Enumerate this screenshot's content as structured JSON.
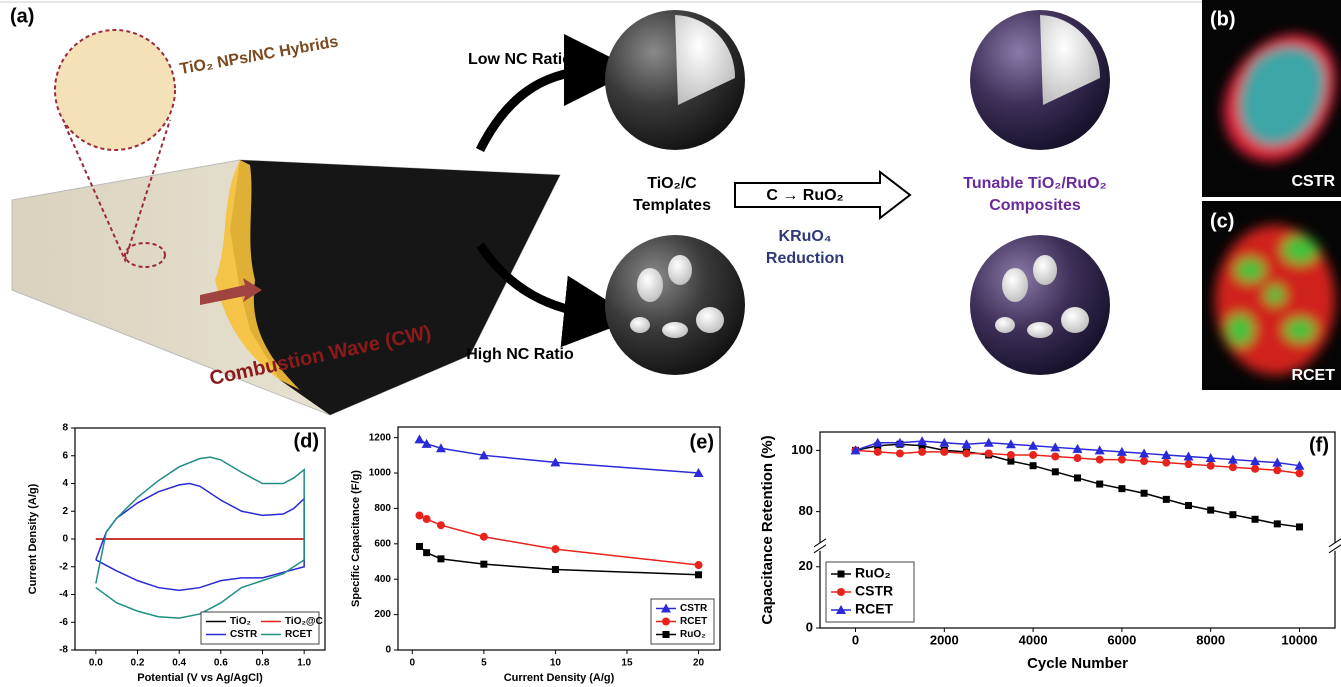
{
  "schematic": {
    "labels": [
      "(a)",
      "(b)",
      "(c)"
    ],
    "hybrid": "TiO₂ NPs/NC Hybrids",
    "wave": "Combustion Wave (CW)",
    "low": "Low NC Ratio",
    "high": "High NC Ratio",
    "templates": [
      "TiO₂/C",
      "Templates"
    ],
    "conversion": "C → RuO₂",
    "reduction": [
      "KRuO₄",
      "Reduction"
    ],
    "composites": [
      "Tunable TiO₂/RuO₂",
      "Composites"
    ],
    "image_b": "CSTR",
    "image_c": "RCET"
  },
  "chart_data": [
    {
      "type": "line",
      "panel_label": "(d)",
      "x_label": "Potential (V vs Ag/AgCl)",
      "y_label": "Current Density (A/g)",
      "xlim": [
        -0.1,
        1.1
      ],
      "xticks": [
        {
          "value": 0,
          "label": "0.0"
        },
        {
          "value": 0.2,
          "label": "0.2"
        },
        {
          "value": 0.4,
          "label": "0.4"
        },
        {
          "value": 0.6,
          "label": "0.6"
        },
        {
          "value": 0.8,
          "label": "0.8"
        },
        {
          "value": 1,
          "label": "1.0"
        }
      ],
      "ylim": [
        -8,
        8
      ],
      "yticks": [
        -8,
        -6,
        -4,
        -2,
        0,
        2,
        4,
        6,
        8
      ],
      "legend": "lower right",
      "legend_columns": 2,
      "series": [
        {
          "name": "TiO₂",
          "color": "#000000",
          "x": [
            0,
            1
          ],
          "values": [
            0,
            0
          ]
        },
        {
          "name": "TiO₂@C",
          "color": "#e8231b",
          "x": [
            0,
            1
          ],
          "values": [
            0,
            0
          ]
        },
        {
          "name": "CSTR",
          "color": "#2a2ad8",
          "x": [
            0,
            0.05,
            0.1,
            0.2,
            0.3,
            0.4,
            0.45,
            0.5,
            0.6,
            0.7,
            0.8,
            0.9,
            0.95,
            1,
            1,
            0.9,
            0.8,
            0.7,
            0.6,
            0.5,
            0.4,
            0.3,
            0.2,
            0.1,
            0
          ],
          "values": [
            -1.5,
            0.5,
            1.5,
            2.6,
            3.4,
            3.9,
            4,
            3.8,
            2.8,
            2,
            1.7,
            1.8,
            2.2,
            2.9,
            -2,
            -2.4,
            -2.8,
            -2.8,
            -3,
            -3.5,
            -3.7,
            -3.5,
            -3,
            -2.3,
            -1.5
          ]
        },
        {
          "name": "RCET",
          "color": "#1f8f84",
          "x": [
            0,
            0.05,
            0.1,
            0.2,
            0.3,
            0.4,
            0.5,
            0.55,
            0.6,
            0.7,
            0.8,
            0.9,
            0.95,
            1,
            1,
            0.95,
            0.9,
            0.8,
            0.7,
            0.6,
            0.5,
            0.4,
            0.3,
            0.2,
            0.1,
            0
          ],
          "values": [
            -3.2,
            0.5,
            1.5,
            3,
            4.2,
            5.2,
            5.8,
            5.9,
            5.7,
            4.8,
            4,
            4,
            4.4,
            5,
            -1.5,
            -2,
            -2.5,
            -3,
            -3.5,
            -4.6,
            -5.4,
            -5.7,
            -5.6,
            -5.2,
            -4.6,
            -3.5
          ]
        }
      ]
    },
    {
      "type": "line",
      "panel_label": "(e)",
      "x_label": "Current Density (A/g)",
      "y_label": "Specific Capacitance (F/g)",
      "xlim": [
        -1,
        21.5
      ],
      "xticks": [
        0,
        5,
        10,
        15,
        20
      ],
      "ylim": [
        0,
        1260
      ],
      "yticks": [
        0,
        200,
        400,
        600,
        800,
        1000,
        1200
      ],
      "legend": "lower right",
      "legend_columns": 1,
      "x": [
        0.5,
        1,
        2,
        5,
        10,
        20
      ],
      "series": [
        {
          "name": "CSTR",
          "color": "#2a2ad8",
          "marker": "triangle",
          "values": [
            1190,
            1165,
            1140,
            1100,
            1060,
            1000
          ]
        },
        {
          "name": "RCET",
          "color": "#e8231b",
          "marker": "circle",
          "values": [
            760,
            740,
            705,
            640,
            570,
            480
          ]
        },
        {
          "name": "RuO₂",
          "color": "#000000",
          "marker": "square",
          "values": [
            585,
            550,
            515,
            485,
            455,
            425
          ]
        }
      ]
    },
    {
      "type": "line",
      "panel_label": "(f)",
      "x_label": "Cycle Number",
      "y_label": "Capacitance Retention (%)",
      "xlim": [
        -800,
        10800
      ],
      "xticks": [
        0,
        2000,
        4000,
        6000,
        8000,
        10000
      ],
      "ylim": [
        0,
        106
      ],
      "ybreak": [
        25,
        70
      ],
      "yticks": [
        0,
        20,
        80,
        100
      ],
      "legend": "lower left",
      "legend_columns": 1,
      "x": [
        0,
        500,
        1000,
        1500,
        2000,
        2500,
        3000,
        3500,
        4000,
        4500,
        5000,
        5500,
        6000,
        6500,
        7000,
        7500,
        8000,
        8500,
        9000,
        9500,
        10000
      ],
      "series": [
        {
          "name": "RuO₂",
          "color": "#000000",
          "marker": "square",
          "values": [
            100,
            101.5,
            102,
            101.5,
            100,
            99.5,
            98.5,
            96.5,
            95,
            93,
            91,
            89,
            87.5,
            86,
            84,
            82,
            80.5,
            79,
            77.5,
            76,
            75
          ]
        },
        {
          "name": "CSTR",
          "color": "#e8231b",
          "marker": "circle",
          "values": [
            100,
            99.5,
            99,
            99.5,
            99.5,
            99,
            99,
            98.5,
            98.5,
            98,
            97.5,
            97,
            97,
            96.5,
            96,
            95.5,
            95,
            94.5,
            94,
            93.5,
            92.5
          ]
        },
        {
          "name": "RCET",
          "color": "#2a2ad8",
          "marker": "triangle",
          "values": [
            100,
            102.5,
            102.5,
            103,
            102.5,
            102,
            102.5,
            102,
            101.5,
            101,
            100.5,
            100,
            99.5,
            99,
            98.5,
            98,
            97.5,
            97,
            96.5,
            96,
            95
          ]
        }
      ]
    }
  ]
}
